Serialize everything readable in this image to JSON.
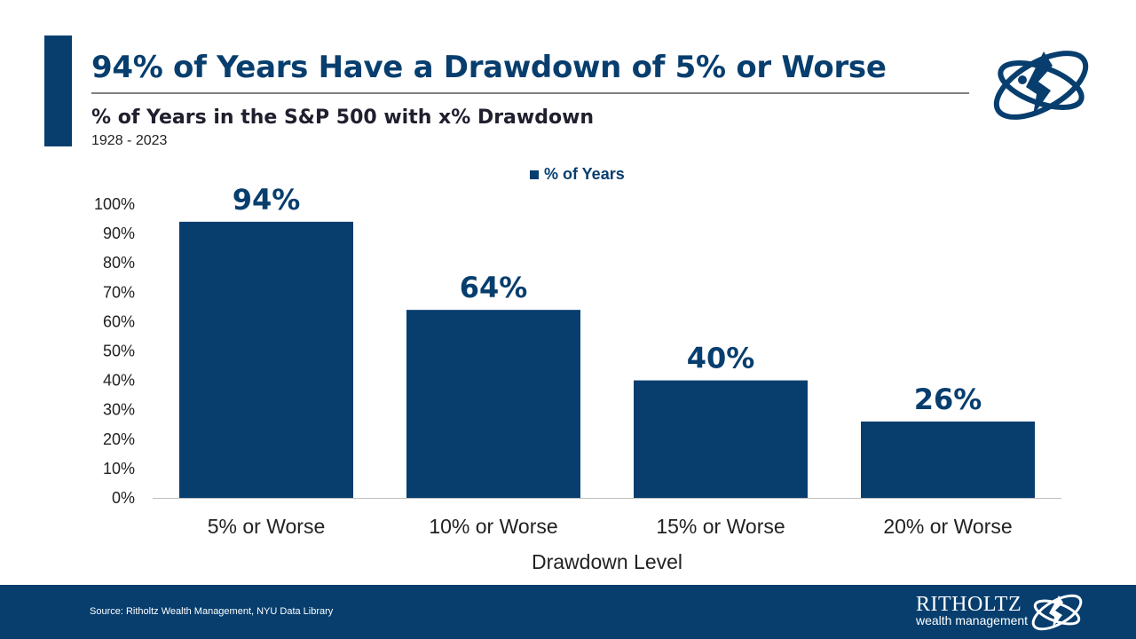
{
  "title": "94% of Years Have a Drawdown of 5% or Worse",
  "subtitle": "% of Years in the S&P 500 with x% Drawdown",
  "date_range": "1928 - 2023",
  "legend": {
    "label": "% of Years"
  },
  "footer": {
    "source": "Source: Ritholtz Wealth Management, NYU Data Library",
    "brand_name": "RITHOLTZ",
    "brand_sub": "wealth management"
  },
  "colors": {
    "accent": "#073e6e",
    "footer_bg": "#073e6e",
    "rule": "#7f7f7f"
  },
  "icons": {
    "logo": "ritholtz-globe-logo"
  },
  "chart_data": {
    "type": "bar",
    "categories": [
      "5% or Worse",
      "10% or Worse",
      "15% or Worse",
      "20% or Worse"
    ],
    "series": [
      {
        "name": "% of Years",
        "values": [
          94,
          64,
          40,
          26
        ]
      }
    ],
    "data_labels": [
      "94%",
      "64%",
      "40%",
      "26%"
    ],
    "xlabel": "Drawdown Level",
    "ylabel": "",
    "ylim": [
      0,
      100
    ],
    "yticks": [
      0,
      10,
      20,
      30,
      40,
      50,
      60,
      70,
      80,
      90,
      100
    ],
    "ytick_labels": [
      "0%",
      "10%",
      "20%",
      "30%",
      "40%",
      "50%",
      "60%",
      "70%",
      "80%",
      "90%",
      "100%"
    ],
    "grid": false,
    "legend_position": "top-center"
  }
}
